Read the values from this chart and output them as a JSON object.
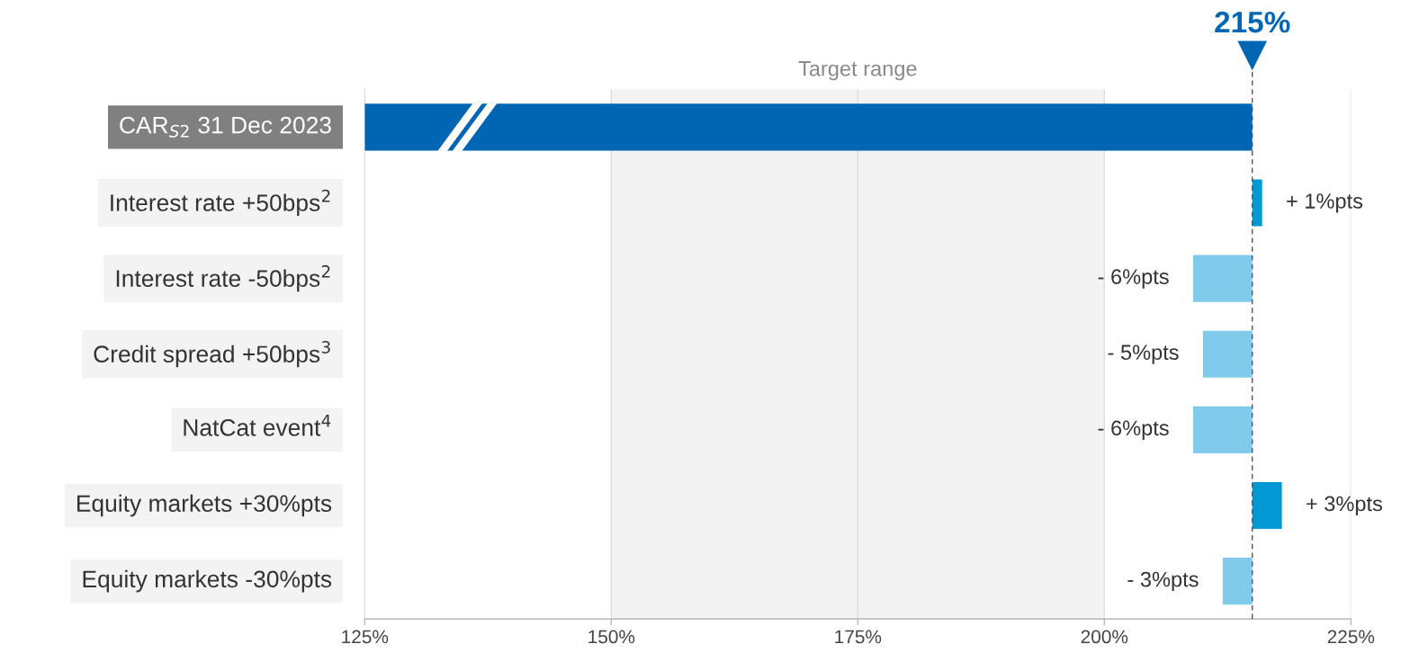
{
  "chart_data": {
    "type": "bar",
    "orientation": "horizontal",
    "categories": [
      "CAR$_{S2}$ 31 Dec 2023",
      "Interest rate +50bps$^{2}$",
      "Interest rate -50bps$^{2}$",
      "Credit spread +50bps$^{3}$",
      "NatCat event$^{4}$",
      "Equity markets +30%pts",
      "Equity markets -30%pts"
    ],
    "base": [
      125,
      215,
      215,
      215,
      215,
      215,
      215
    ],
    "values": [
      90,
      1,
      -6,
      -5,
      -6,
      3,
      -3
    ],
    "colors": [
      "#0066b3",
      "#0099d6",
      "#80cbeb",
      "#80cbeb",
      "#80cbeb",
      "#0099d6",
      "#80cbeb"
    ],
    "value_labels": [
      null,
      "+ 1%pts",
      "- 6%pts",
      "- 5%pts",
      "- 6%pts",
      "+ 3%pts",
      "- 3%pts"
    ],
    "xlim": [
      125,
      225
    ],
    "xticks": [
      {
        "value": 125,
        "label": "125%"
      },
      {
        "value": 150,
        "label": "150%"
      },
      {
        "value": 175,
        "label": "175%"
      },
      {
        "value": 200,
        "label": "200%"
      },
      {
        "value": 225,
        "label": "225%"
      }
    ],
    "grid": "x",
    "bands": [
      {
        "axis": "x",
        "from": 150,
        "to": 200,
        "label": "Target range",
        "color": "#f3f3f3"
      }
    ],
    "ref_lines": [
      {
        "axis": "x",
        "value": 215,
        "label": "215%",
        "color": "#555555",
        "line_style": "dashed"
      }
    ]
  }
}
